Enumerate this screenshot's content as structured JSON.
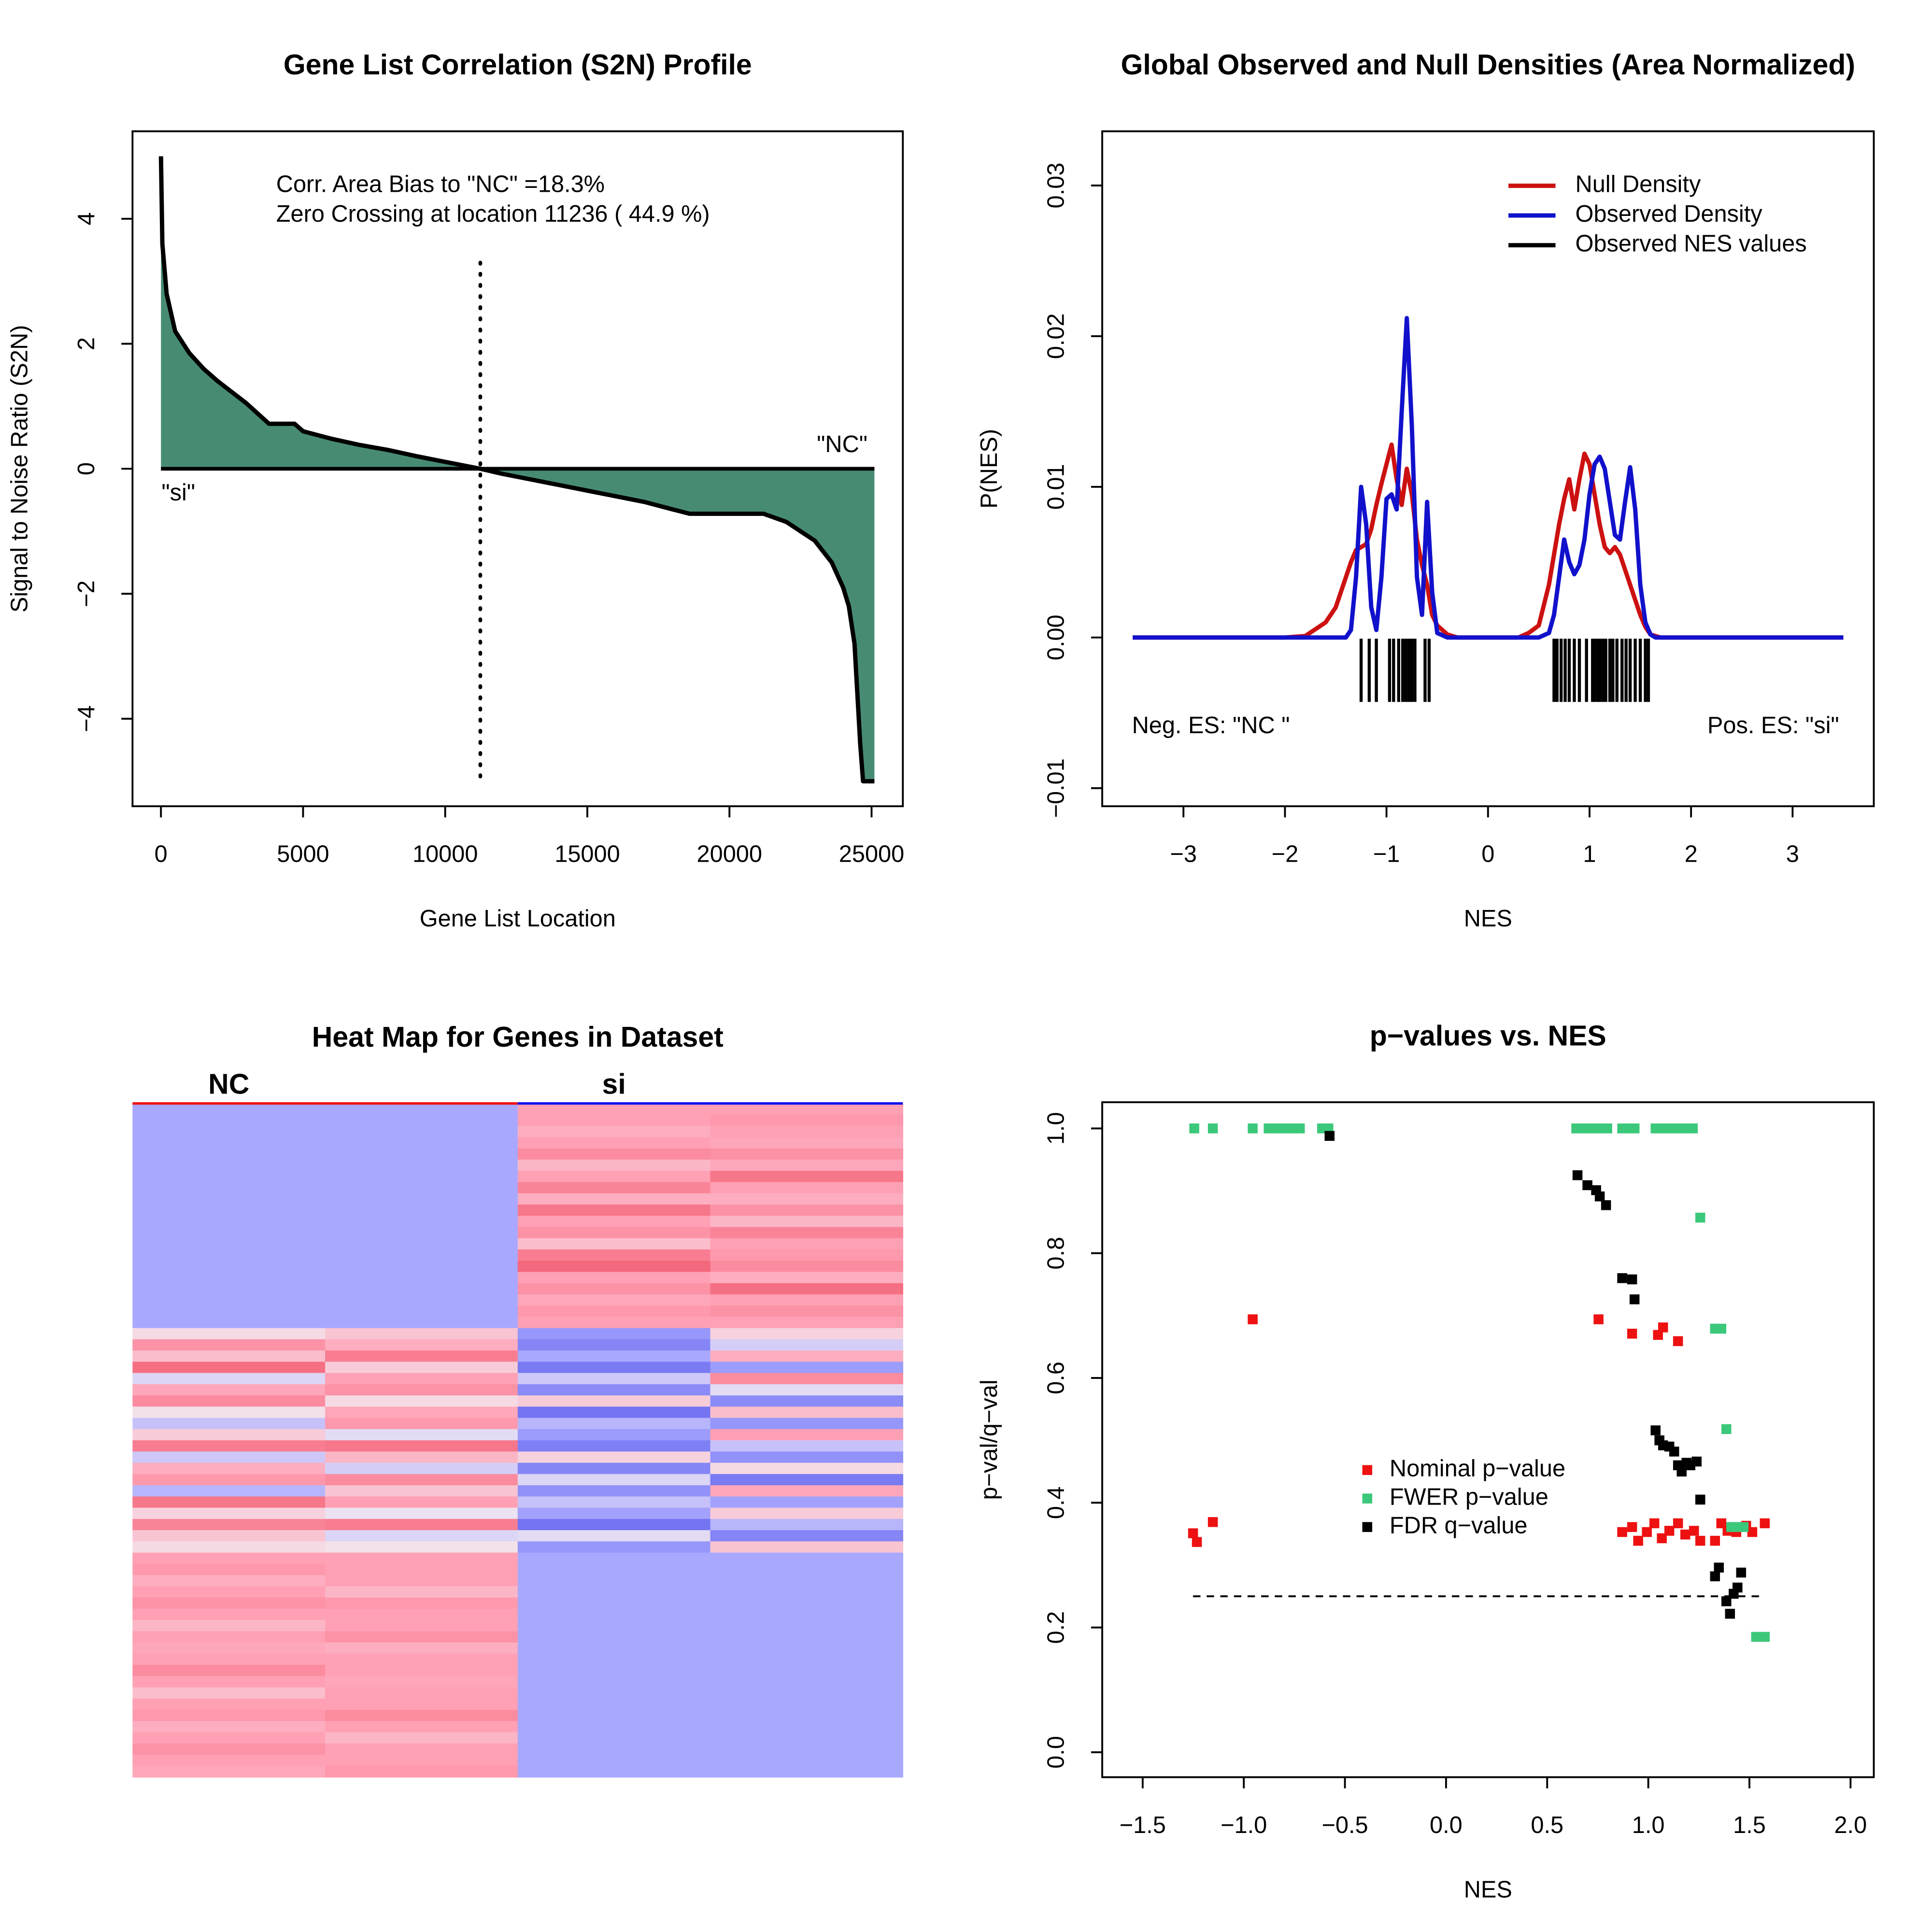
{
  "chart_data": [
    {
      "type": "area",
      "title": "Gene List Correlation (S2N) Profile",
      "x_label": "Gene List Location",
      "y_label": "Signal to Noise Ratio (S2N)",
      "annotations": [
        "Corr. Area Bias to \"NC\" =18.3%",
        "Zero Crossing at location  11236  ( 44.9  %)",
        "\"NC\"",
        "\"si\""
      ],
      "x": [
        1,
        50,
        200,
        500,
        1000,
        1500,
        2000,
        3000,
        3800,
        4700,
        5000,
        6000,
        7000,
        8000,
        9000,
        10000,
        11236,
        12000,
        13000,
        14000,
        15000,
        16000,
        17000,
        18000,
        18600,
        20000,
        21200,
        22000,
        23000,
        23600,
        24000,
        24200,
        24400,
        24500,
        24600,
        24700,
        25100
      ],
      "values": [
        5.0,
        3.6,
        2.8,
        2.2,
        1.85,
        1.6,
        1.4,
        1.05,
        0.72,
        0.72,
        0.6,
        0.48,
        0.38,
        0.3,
        0.2,
        0.11,
        0,
        -0.08,
        -0.17,
        -0.26,
        -0.35,
        -0.44,
        -0.53,
        -0.65,
        -0.72,
        -0.72,
        -0.72,
        -0.85,
        -1.15,
        -1.5,
        -1.9,
        -2.2,
        -2.8,
        -3.6,
        -4.4,
        -5.0,
        -5.0
      ],
      "color": "#478c72",
      "line_color": "#000000",
      "zero_crossing": 11236,
      "xlim": [
        -1000,
        26100
      ],
      "ylim": [
        -5.4,
        5.4
      ],
      "xticks": [
        0,
        5000,
        10000,
        15000,
        20000,
        25000
      ],
      "yticks": [
        {
          "value": -4,
          "label": "−4"
        },
        {
          "value": -2,
          "label": "−2"
        },
        0,
        2,
        4
      ]
    },
    {
      "type": "line",
      "title": "Global Observed and Null Densities (Area Normalized)",
      "x_label": "NES",
      "y_label": "P(NES)",
      "x": [
        -3.5,
        -2,
        -1.8,
        -1.6,
        -1.5,
        -1.4,
        -1.35,
        -1.3,
        -1.25,
        -1.2,
        -1.15,
        -1.1,
        -1.05,
        -1.0,
        -0.95,
        -0.9,
        -0.85,
        -0.8,
        -0.75,
        -0.7,
        -0.65,
        -0.6,
        -0.55,
        -0.5,
        -0.4,
        -0.3,
        0.3,
        0.4,
        0.5,
        0.6,
        0.65,
        0.7,
        0.75,
        0.8,
        0.85,
        0.9,
        0.95,
        1.0,
        1.05,
        1.1,
        1.15,
        1.2,
        1.25,
        1.3,
        1.35,
        1.4,
        1.45,
        1.5,
        1.55,
        1.6,
        1.65,
        1.7,
        2,
        3.5
      ],
      "series": [
        {
          "name": "Null Density",
          "color": "#cc1111",
          "values": [
            0,
            0,
            0.0001,
            0.001,
            0.002,
            0.004,
            0.005,
            0.0058,
            0.006,
            0.0062,
            0.0072,
            0.0088,
            0.0102,
            0.0115,
            0.0128,
            0.0105,
            0.0088,
            0.0112,
            0.0095,
            0.0065,
            0.0048,
            0.0035,
            0.0015,
            0.0008,
            0.0002,
            0,
            0,
            0.0003,
            0.0008,
            0.0035,
            0.0055,
            0.0075,
            0.0092,
            0.0105,
            0.0085,
            0.0105,
            0.0122,
            0.0115,
            0.0095,
            0.0075,
            0.006,
            0.0056,
            0.006,
            0.0055,
            0.0045,
            0.0035,
            0.0025,
            0.0015,
            0.0007,
            0.0002,
            0.0001,
            0,
            0,
            0
          ]
        },
        {
          "name": "Observed Density",
          "color": "#1111cc",
          "values": [
            0,
            0,
            0,
            0,
            0,
            0,
            0.0005,
            0.004,
            0.01,
            0.0075,
            0.002,
            0.0005,
            0.004,
            0.0092,
            0.0095,
            0.0085,
            0.015,
            0.0212,
            0.014,
            0.004,
            0.0015,
            0.009,
            0.003,
            0.0003,
            0,
            0,
            0,
            0,
            0,
            0.0003,
            0.0015,
            0.004,
            0.0065,
            0.005,
            0.0042,
            0.0048,
            0.0065,
            0.0095,
            0.0115,
            0.012,
            0.0112,
            0.009,
            0.0068,
            0.0065,
            0.009,
            0.0113,
            0.0085,
            0.0035,
            0.001,
            0.0002,
            0,
            0,
            0,
            0
          ]
        }
      ],
      "rug": {
        "name": "Observed NES values",
        "color": "#000000",
        "values": [
          -1.25,
          -1.17,
          -1.1,
          -0.97,
          -0.93,
          -0.88,
          -0.84,
          -0.81,
          -0.78,
          -0.75,
          -0.72,
          -0.62,
          -0.58,
          0.65,
          0.68,
          0.72,
          0.76,
          0.8,
          0.85,
          0.9,
          0.97,
          1.03,
          1.05,
          1.08,
          1.1,
          1.13,
          1.16,
          1.2,
          1.23,
          1.27,
          1.32,
          1.36,
          1.4,
          1.45,
          1.5,
          1.55,
          1.58
        ]
      },
      "annotations": [
        "Neg. ES: \"NC \"",
        "Pos. ES: \"si\""
      ],
      "legend": "top-right",
      "xlim": [
        -3.8,
        3.8
      ],
      "ylim": [
        -0.0112,
        0.0336
      ],
      "xticks": [
        {
          "value": -3,
          "label": "−3"
        },
        {
          "value": -2,
          "label": "−2"
        },
        {
          "value": -1,
          "label": "−1"
        },
        0,
        1,
        2,
        3
      ],
      "yticks": [
        {
          "value": -0.01,
          "label": "−0.01"
        },
        {
          "value": 0,
          "label": "0.00"
        },
        0.01,
        0.02,
        0.03
      ]
    },
    {
      "type": "heatmap",
      "title": "Heat Map for Genes in Dataset",
      "column_groups": [
        {
          "name": "NC",
          "color": "#ee1111"
        },
        {
          "name": "si",
          "color": "#1111ee"
        }
      ],
      "colors": [
        "#6e6ef0",
        "#a8a8ff",
        "#f2e8f0",
        "#ffa0b4",
        "#f05a6e"
      ],
      "zlim": [
        -2,
        2
      ],
      "values": [
        [
          -1,
          -1,
          1,
          1
        ],
        [
          -1,
          -1,
          1,
          1.1
        ],
        [
          -1,
          -1,
          0.8,
          1
        ],
        [
          -1,
          -1,
          1,
          0.9
        ],
        [
          -1,
          -1,
          1.3,
          1.2
        ],
        [
          -1,
          -1,
          0.7,
          0.9
        ],
        [
          -1,
          -1,
          1,
          1.6
        ],
        [
          -1,
          -1,
          1.4,
          1
        ],
        [
          -1,
          -1,
          0.8,
          0.8
        ],
        [
          -1,
          -1,
          1.6,
          1.2
        ],
        [
          -1,
          -1,
          1,
          0.7
        ],
        [
          -1,
          -1,
          1.2,
          1.4
        ],
        [
          -1,
          -1,
          0.6,
          1
        ],
        [
          -1,
          -1,
          1.5,
          1.1
        ],
        [
          -1,
          -1,
          1.8,
          1.3
        ],
        [
          -1,
          -1,
          1,
          0.8
        ],
        [
          -1,
          -1,
          1.2,
          1.7
        ],
        [
          -1,
          -1,
          0.9,
          1
        ],
        [
          -1,
          -1,
          1.1,
          1.2
        ],
        [
          -1,
          -1,
          1,
          1
        ],
        [
          0.2,
          0.5,
          -1.3,
          0.3
        ],
        [
          1.2,
          0.8,
          -1.6,
          -0.4
        ],
        [
          0.6,
          1.5,
          -1,
          0.8
        ],
        [
          1.7,
          0.4,
          -1.8,
          -1.2
        ],
        [
          -0.3,
          1,
          -0.5,
          1.3
        ],
        [
          0.9,
          1.2,
          -1.5,
          -0.2
        ],
        [
          1.3,
          0.2,
          0.4,
          -1.5
        ],
        [
          0.1,
          0.9,
          -1.9,
          0.6
        ],
        [
          -0.6,
          1.1,
          -0.8,
          -1.3
        ],
        [
          0.4,
          -0.2,
          -1.2,
          1
        ],
        [
          1.5,
          1.6,
          -1.7,
          -0.6
        ],
        [
          -0.5,
          0.7,
          0.3,
          -1.4
        ],
        [
          0.8,
          -0.4,
          -1.6,
          0.2
        ],
        [
          1.1,
          1.3,
          -0.3,
          -1.8
        ],
        [
          -0.8,
          0.5,
          -1.4,
          0.9
        ],
        [
          1.6,
          1,
          -0.6,
          -1.1
        ],
        [
          0.3,
          -0.1,
          -1.1,
          0.4
        ],
        [
          1.4,
          1.5,
          -1.9,
          -0.8
        ],
        [
          0.5,
          -0.3,
          -0.2,
          -1.6
        ],
        [
          0.2,
          0.1,
          -1.3,
          0.5
        ],
        [
          1,
          1,
          -1,
          -1
        ],
        [
          1.1,
          1,
          -1,
          -1
        ],
        [
          0.8,
          1,
          -1,
          -1
        ],
        [
          1,
          0.7,
          -1,
          -1
        ],
        [
          1.2,
          1.1,
          -1,
          -1
        ],
        [
          1,
          1,
          -1,
          -1
        ],
        [
          0.7,
          1,
          -1,
          -1
        ],
        [
          1,
          1.2,
          -1,
          -1
        ],
        [
          0.9,
          0.8,
          -1,
          -1
        ],
        [
          1,
          1,
          -1,
          -1
        ],
        [
          1.3,
          1,
          -1,
          -1
        ],
        [
          1,
          0.9,
          -1,
          -1
        ],
        [
          0.6,
          1,
          -1,
          -1
        ],
        [
          1,
          1,
          -1,
          -1
        ],
        [
          1.1,
          1.3,
          -1,
          -1
        ],
        [
          0.8,
          1,
          -1,
          -1
        ],
        [
          1,
          0.7,
          -1,
          -1
        ],
        [
          1.2,
          1,
          -1,
          -1
        ],
        [
          1,
          1,
          -1,
          -1
        ],
        [
          0.9,
          1.1,
          -1,
          -1
        ]
      ]
    },
    {
      "type": "scatter",
      "title": "p−values vs. NES",
      "x_label": "NES",
      "y_label": "p−val/q−val",
      "series": [
        {
          "name": "Nominal p−value",
          "color": "#ee1111",
          "x": [
            -1.251,
            -1.232,
            -1.153,
            -0.956,
            0.754,
            0.92,
            1.048,
            1.073,
            1.147,
            0.871,
            0.92,
            0.95,
            0.993,
            1.03,
            1.067,
            1.104,
            1.147,
            1.183,
            1.226,
            1.257,
            1.33,
            1.361,
            1.392,
            1.435,
            1.484,
            1.514,
            1.576
          ],
          "values": [
            0.351,
            0.337,
            0.369,
            0.694,
            0.694,
            0.671,
            0.669,
            0.681,
            0.659,
            0.353,
            0.361,
            0.339,
            0.353,
            0.367,
            0.343,
            0.355,
            0.367,
            0.349,
            0.355,
            0.339,
            0.339,
            0.367,
            0.355,
            0.353,
            0.363,
            0.353,
            0.367
          ]
        },
        {
          "name": "FWER p−value",
          "color": "#3cc87a",
          "x": [
            -1.245,
            -1.153,
            -0.956,
            -0.877,
            -0.846,
            -0.815,
            -0.785,
            -0.754,
            -0.723,
            -0.613,
            -0.582,
            0.644,
            0.674,
            0.705,
            0.736,
            0.766,
            0.797,
            0.871,
            0.901,
            0.932,
            1.036,
            1.067,
            1.097,
            1.128,
            1.159,
            1.189,
            1.22,
            1.257,
            1.33,
            1.361,
            1.386,
            1.41,
            1.441,
            1.471,
            1.533,
            1.576
          ],
          "values": [
            1.0,
            1.0,
            1.0,
            1.0,
            1.0,
            1.0,
            1.0,
            1.0,
            1.0,
            1.0,
            1.0,
            1.0,
            1.0,
            1.0,
            1.0,
            1.0,
            1.0,
            1.0,
            1.0,
            1.0,
            1.0,
            1.0,
            1.0,
            1.0,
            1.0,
            1.0,
            1.0,
            0.857,
            0.679,
            0.679,
            0.518,
            0.361,
            0.361,
            0.361,
            0.185,
            0.185
          ]
        },
        {
          "name": "FDR q−value",
          "color": "#000000",
          "x": [
            -0.576,
            0.65,
            0.699,
            0.742,
            0.76,
            0.791,
            0.871,
            0.92,
            0.932,
            1.036,
            1.055,
            1.073,
            1.104,
            1.128,
            1.147,
            1.165,
            1.189,
            1.208,
            1.239,
            1.257,
            1.33,
            1.349,
            1.386,
            1.404,
            1.422,
            1.441,
            1.459
          ],
          "values": [
            0.988,
            0.925,
            0.909,
            0.901,
            0.891,
            0.877,
            0.76,
            0.758,
            0.726,
            0.516,
            0.5,
            0.492,
            0.49,
            0.482,
            0.46,
            0.45,
            0.464,
            0.46,
            0.466,
            0.405,
            0.282,
            0.296,
            0.242,
            0.222,
            0.254,
            0.264,
            0.288
          ]
        }
      ],
      "hline": 0.25,
      "legend": "center",
      "xlim": [
        -1.7,
        2.115
      ],
      "ylim": [
        -0.04,
        1.042
      ],
      "xticks": [
        {
          "value": -1.5,
          "label": "−1.5"
        },
        {
          "value": -1,
          "label": "−1.0"
        },
        {
          "value": -0.5,
          "label": "−0.5"
        },
        {
          "value": 0,
          "label": "0.0"
        },
        0.5,
        {
          "value": 1,
          "label": "1.0"
        },
        1.5,
        {
          "value": 2,
          "label": "2.0"
        }
      ],
      "yticks": [
        {
          "value": 0,
          "label": "0.0"
        },
        0.2,
        0.4,
        0.6,
        0.8,
        {
          "value": 1,
          "label": "1.0"
        }
      ]
    }
  ]
}
